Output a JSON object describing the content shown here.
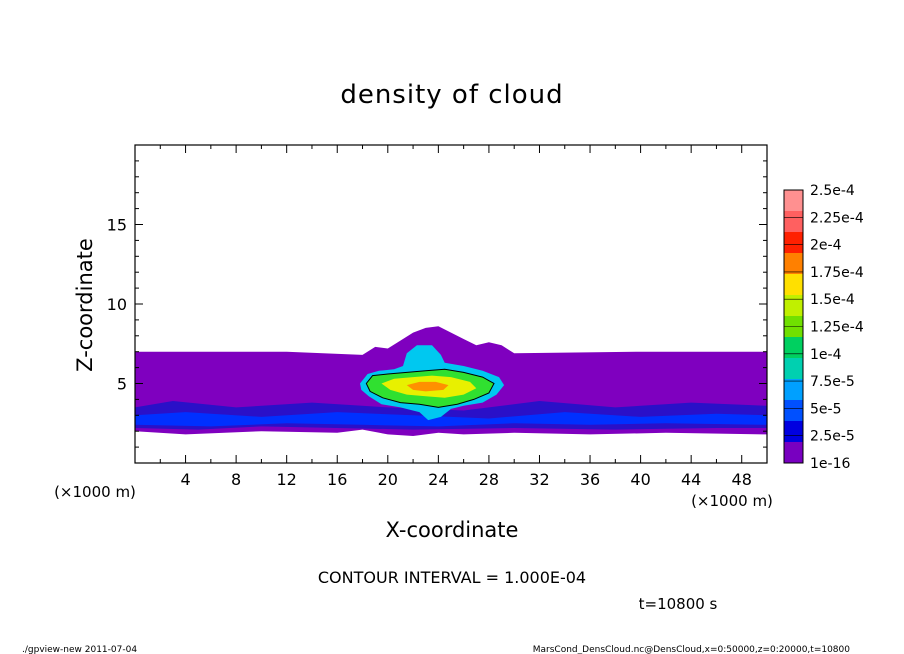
{
  "chart_data": {
    "type": "heatmap",
    "title": "density of cloud",
    "xlabel": "X-coordinate",
    "ylabel": "Z-coordinate",
    "x_unit_left": "(×1000 m)",
    "x_unit_right": "(×1000 m)",
    "xlim": [
      0,
      50
    ],
    "ylim": [
      0,
      20
    ],
    "xticks": [
      "4",
      "8",
      "12",
      "16",
      "20",
      "24",
      "28",
      "32",
      "36",
      "40",
      "44",
      "48"
    ],
    "xtick_values": [
      4,
      8,
      12,
      16,
      20,
      24,
      28,
      32,
      36,
      40,
      44,
      48
    ],
    "yticks": [
      "5",
      "10",
      "15"
    ],
    "ytick_values": [
      5,
      10,
      15
    ],
    "colorbar_labels": [
      "2.5e-4",
      "2.25e-4",
      "2e-4",
      "1.75e-4",
      "1.5e-4",
      "1.25e-4",
      "1e-4",
      "7.5e-5",
      "5e-5",
      "2.5e-5",
      "1e-16"
    ],
    "colorbar_colors": [
      "#ff9090",
      "#ff6060",
      "#ff2000",
      "#ff8000",
      "#ffe000",
      "#c0f000",
      "#70e000",
      "#00d060",
      "#00d0b0",
      "#00a0ff",
      "#0050ff",
      "#0000e0",
      "#7800c0"
    ],
    "contour_interval": "CONTOUR INTERVAL = 1.000E-04",
    "time_label": "t=10800 s",
    "layers": [
      {
        "name": "purple",
        "color": "#7f00bf",
        "points": [
          [
            0,
            2
          ],
          [
            4,
            1.8
          ],
          [
            10,
            2
          ],
          [
            16,
            1.9
          ],
          [
            18,
            2.1
          ],
          [
            20,
            1.8
          ],
          [
            22,
            1.7
          ],
          [
            24,
            1.9
          ],
          [
            26,
            1.8
          ],
          [
            30,
            1.9
          ],
          [
            36,
            1.8
          ],
          [
            42,
            1.9
          ],
          [
            50,
            1.8
          ],
          [
            50,
            7
          ],
          [
            40,
            7
          ],
          [
            30,
            6.9
          ],
          [
            29,
            7.4
          ],
          [
            28,
            7.6
          ],
          [
            27,
            7.4
          ],
          [
            26,
            7.8
          ],
          [
            25,
            8.2
          ],
          [
            24,
            8.6
          ],
          [
            23,
            8.5
          ],
          [
            22,
            8.2
          ],
          [
            21,
            7.7
          ],
          [
            20,
            7.2
          ],
          [
            19,
            7.3
          ],
          [
            18,
            6.8
          ],
          [
            12,
            7
          ],
          [
            0,
            7
          ]
        ]
      },
      {
        "name": "dark-blue",
        "color": "#2a10c8",
        "points": [
          [
            0,
            2.2
          ],
          [
            5,
            2.1
          ],
          [
            10,
            2.3
          ],
          [
            16,
            2.2
          ],
          [
            22,
            2.1
          ],
          [
            30,
            2.2
          ],
          [
            38,
            2.1
          ],
          [
            46,
            2.2
          ],
          [
            50,
            2.2
          ],
          [
            50,
            3.6
          ],
          [
            44,
            3.8
          ],
          [
            38,
            3.5
          ],
          [
            32,
            3.9
          ],
          [
            26,
            3.3
          ],
          [
            20,
            3.5
          ],
          [
            14,
            3.8
          ],
          [
            8,
            3.5
          ],
          [
            3,
            3.9
          ],
          [
            0,
            3.5
          ]
        ]
      },
      {
        "name": "mid-blue",
        "color": "#0030ff",
        "points": [
          [
            0,
            2.4
          ],
          [
            6,
            2.3
          ],
          [
            12,
            2.5
          ],
          [
            18,
            2.4
          ],
          [
            24,
            2.3
          ],
          [
            30,
            2.5
          ],
          [
            36,
            2.4
          ],
          [
            42,
            2.5
          ],
          [
            50,
            2.4
          ],
          [
            50,
            3.0
          ],
          [
            46,
            3.1
          ],
          [
            40,
            2.9
          ],
          [
            34,
            3.2
          ],
          [
            28,
            2.8
          ],
          [
            22,
            3.0
          ],
          [
            16,
            3.2
          ],
          [
            10,
            2.9
          ],
          [
            4,
            3.2
          ],
          [
            0,
            3.0
          ]
        ]
      },
      {
        "name": "cloud-cyan",
        "color": "#00c8f0",
        "points": [
          [
            17.8,
            5
          ],
          [
            18.4,
            5.6
          ],
          [
            19.3,
            5.8
          ],
          [
            20.5,
            5.9
          ],
          [
            21.2,
            6.1
          ],
          [
            21.5,
            6.9
          ],
          [
            22.3,
            7.4
          ],
          [
            23.5,
            7.4
          ],
          [
            24.2,
            6.8
          ],
          [
            24.5,
            6.3
          ],
          [
            26,
            6.1
          ],
          [
            27.5,
            5.8
          ],
          [
            28.8,
            5.4
          ],
          [
            29.2,
            4.9
          ],
          [
            28.6,
            4.3
          ],
          [
            27.5,
            3.8
          ],
          [
            26,
            3.6
          ],
          [
            25,
            3.4
          ],
          [
            24.2,
            2.9
          ],
          [
            23.2,
            2.7
          ],
          [
            22.5,
            3.2
          ],
          [
            21,
            3.5
          ],
          [
            19.5,
            3.7
          ],
          [
            18.5,
            4.2
          ],
          [
            17.9,
            4.6
          ]
        ]
      },
      {
        "name": "cloud-green",
        "color": "#30e030",
        "points": [
          [
            18.3,
            5
          ],
          [
            18.8,
            5.5
          ],
          [
            20,
            5.6
          ],
          [
            21.5,
            5.7
          ],
          [
            23,
            5.8
          ],
          [
            24.5,
            5.9
          ],
          [
            26,
            5.7
          ],
          [
            27.5,
            5.4
          ],
          [
            28.4,
            5
          ],
          [
            28,
            4.4
          ],
          [
            26.8,
            4
          ],
          [
            25.5,
            3.7
          ],
          [
            24,
            3.5
          ],
          [
            22.5,
            3.7
          ],
          [
            21,
            3.8
          ],
          [
            19.6,
            4.1
          ],
          [
            18.6,
            4.5
          ]
        ]
      },
      {
        "name": "cloud-yellow",
        "color": "#e8f000",
        "points": [
          [
            19.5,
            5
          ],
          [
            20.5,
            5.3
          ],
          [
            22,
            5.4
          ],
          [
            23.5,
            5.5
          ],
          [
            25,
            5.4
          ],
          [
            26.5,
            5.1
          ],
          [
            27,
            4.7
          ],
          [
            26,
            4.3
          ],
          [
            24.5,
            4.1
          ],
          [
            23,
            4.2
          ],
          [
            21.5,
            4.3
          ],
          [
            20.2,
            4.6
          ]
        ]
      },
      {
        "name": "cloud-orange",
        "color": "#ff9000",
        "points": [
          [
            21.5,
            4.9
          ],
          [
            22.5,
            5.1
          ],
          [
            23.8,
            5.1
          ],
          [
            24.8,
            4.9
          ],
          [
            24.4,
            4.6
          ],
          [
            23,
            4.5
          ],
          [
            22,
            4.6
          ]
        ]
      }
    ]
  },
  "footer": {
    "left": "./gpview-new   2011-07-04",
    "right": "MarsCond_DensCloud.nc@DensCloud,x=0:50000,z=0:20000,t=10800"
  }
}
